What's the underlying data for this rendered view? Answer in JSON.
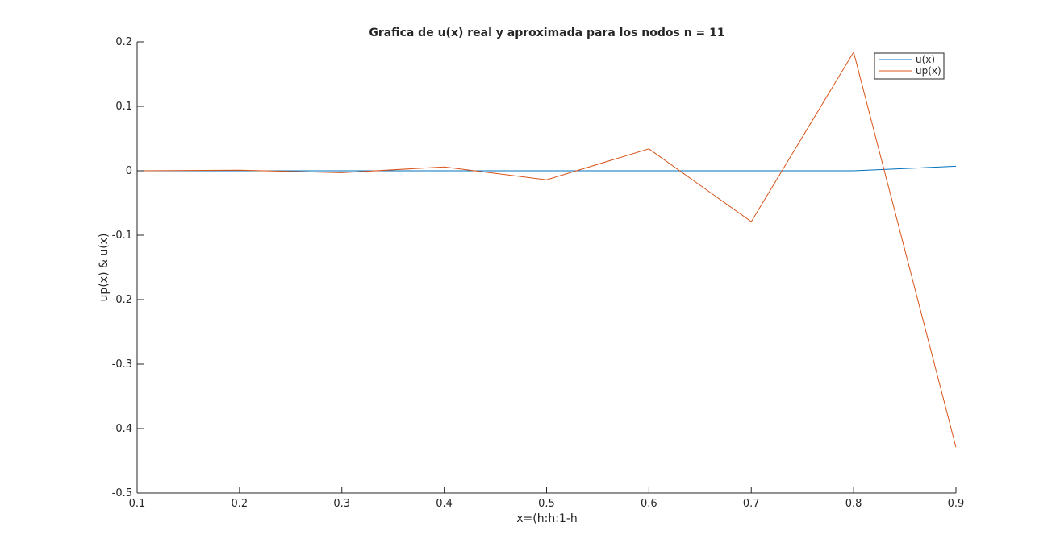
{
  "chart_data": {
    "type": "line",
    "title": "Grafica de u(x) real y aproximada para los nodos n = 11",
    "xlabel": "x=(h:h:1-h",
    "ylabel": "up(x) & u(x)",
    "xlim": [
      0.1,
      0.9
    ],
    "ylim": [
      -0.5,
      0.2
    ],
    "xticks": [
      0.1,
      0.2,
      0.3,
      0.4,
      0.5,
      0.6,
      0.7,
      0.8,
      0.9
    ],
    "xtick_labels": [
      "0.1",
      "0.2",
      "0.3",
      "0.4",
      "0.5",
      "0.6",
      "0.7",
      "0.8",
      "0.9"
    ],
    "yticks": [
      -0.5,
      -0.4,
      -0.3,
      -0.2,
      -0.1,
      0,
      0.1,
      0.2
    ],
    "ytick_labels": [
      "-0.5",
      "-0.4",
      "-0.3",
      "-0.2",
      "-0.1",
      "0",
      "0.1",
      "0.2"
    ],
    "grid": false,
    "legend_position": "top-right",
    "x": [
      0.1,
      0.2,
      0.3,
      0.4,
      0.5,
      0.6,
      0.7,
      0.8,
      0.9
    ],
    "series": [
      {
        "name": "u(x)",
        "color": "#0072BD",
        "values": [
          0,
          0,
          0,
          0,
          0,
          0,
          0,
          0,
          0.007
        ]
      },
      {
        "name": "up(x)",
        "color": "#D95319",
        "values": [
          0,
          0.001,
          -0.003,
          0.006,
          -0.014,
          0.034,
          -0.079,
          0.184,
          -0.429
        ]
      }
    ]
  }
}
